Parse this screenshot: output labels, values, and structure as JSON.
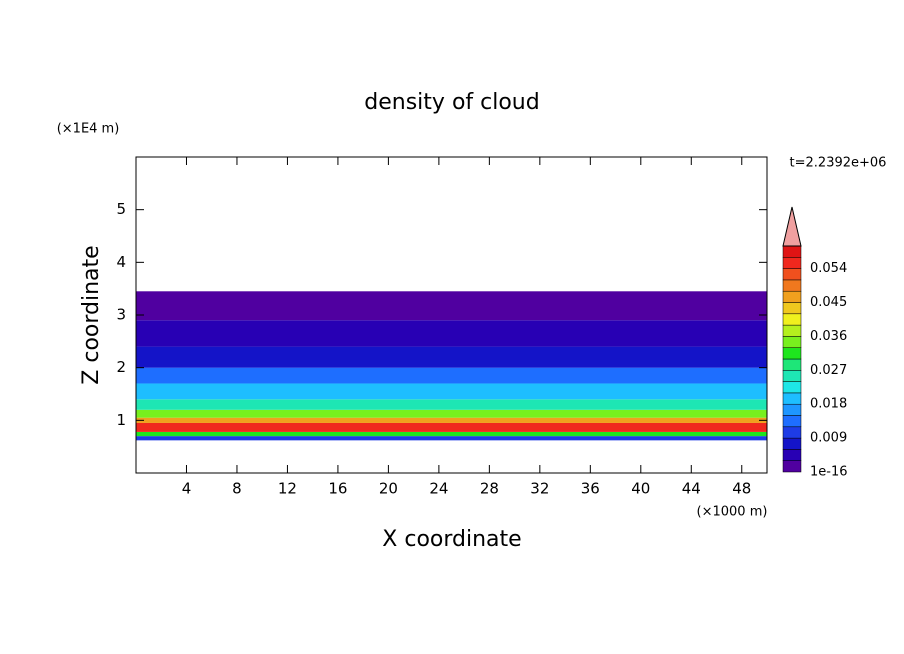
{
  "chart_data": {
    "type": "contour",
    "title": "density of cloud",
    "x_label": "X coordinate",
    "y_label": "Z coordinate",
    "x_unit": "(×1000 m)",
    "y_unit": "(×1E4 m)",
    "time_label": "t=2.2392e+06",
    "xlim": [
      0,
      50
    ],
    "xticks": [
      4,
      8,
      12,
      16,
      20,
      24,
      28,
      32,
      36,
      40,
      44,
      48
    ],
    "ylim": [
      0,
      6
    ],
    "yticks": [
      1,
      2,
      3,
      4,
      5
    ],
    "profile": {
      "z_edges": [
        0.62,
        0.7,
        0.78,
        0.95,
        1.05,
        1.2,
        1.4,
        1.7,
        2.0,
        2.4,
        2.9,
        3.45
      ],
      "values": [
        0.009,
        0.03,
        0.054,
        0.045,
        0.033,
        0.024,
        0.018,
        0.012,
        0.006,
        0.003,
        1e-16
      ]
    },
    "levels": [
      1e-16,
      0.003,
      0.006,
      0.009,
      0.012,
      0.015,
      0.018,
      0.021,
      0.024,
      0.027,
      0.03,
      0.033,
      0.036,
      0.039,
      0.042,
      0.045,
      0.048,
      0.051,
      0.054,
      0.057
    ],
    "level_colors": [
      "#5000a0",
      "#2800b4",
      "#1414c8",
      "#1e3ce6",
      "#1e6eff",
      "#1e96ff",
      "#1ebeff",
      "#1ee6e6",
      "#1ee6b4",
      "#1ee678",
      "#1ee61e",
      "#78f01e",
      "#b4f01e",
      "#f0f01e",
      "#f0c81e",
      "#f0a01e",
      "#f0781e",
      "#f0501e",
      "#f0281e",
      "#e01414"
    ],
    "over_color": "#f0a0a0",
    "colorbar_max": 0.06,
    "colorbar_ticks": [
      1e-16,
      0.009,
      0.018,
      0.027,
      0.036,
      0.045,
      0.054
    ]
  }
}
